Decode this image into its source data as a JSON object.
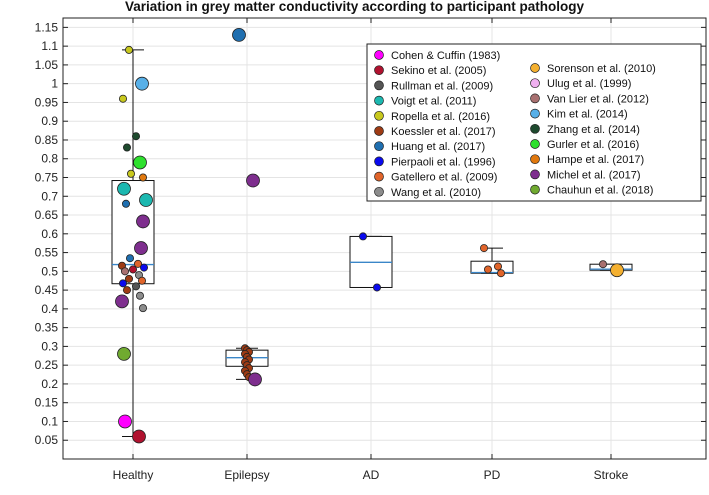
{
  "chart_data": {
    "type": "box+scatter",
    "title": "Variation in grey matter conductivity according to participant pathology",
    "xlabel": "",
    "ylabel": "",
    "ylim": [
      0,
      1.175
    ],
    "yticks": [
      0.05,
      0.1,
      0.15,
      0.2,
      0.25,
      0.3,
      0.35,
      0.4,
      0.45,
      0.5,
      0.55,
      0.6,
      0.65,
      0.7,
      0.75,
      0.8,
      0.85,
      0.9,
      0.95,
      1,
      1.05,
      1.1,
      1.15
    ],
    "ytick_labels": [
      "0.05",
      "0.1",
      "0.15",
      "0.2",
      "0.25",
      "0.3",
      "0.35",
      "0.4",
      "0.45",
      "0.5",
      "0.55",
      "0.6",
      "0.65",
      "0.7",
      "0.75",
      "0.8",
      "0.85",
      "0.9",
      "0.95",
      "1",
      "1.05",
      "1.1",
      "1.15"
    ],
    "grid": true,
    "categories": [
      "Healthy",
      "Epilepsy",
      "AD",
      "PD",
      "Stroke"
    ],
    "boxes": [
      {
        "category": "Healthy",
        "min": 0.06,
        "q1": 0.467,
        "median": 0.518,
        "q3": 0.742,
        "max": 1.09
      },
      {
        "category": "Epilepsy",
        "min": 0.212,
        "q1": 0.247,
        "median": 0.27,
        "q3": 0.29,
        "max": 0.295
      },
      {
        "category": "AD",
        "min": 0.457,
        "q1": 0.457,
        "median": 0.524,
        "q3": 0.593,
        "max": 0.593
      },
      {
        "category": "PD",
        "min": 0.495,
        "q1": 0.495,
        "median": 0.497,
        "q3": 0.527,
        "max": 0.562
      },
      {
        "category": "Stroke",
        "min": 0.503,
        "q1": 0.503,
        "median": 0.506,
        "q3": 0.519,
        "max": 0.519
      }
    ],
    "legend": [
      {
        "name": "Cohen & Cuffin (1983)",
        "color": "#ff00ff"
      },
      {
        "name": "Sekino et al. (2005)",
        "color": "#b0122f"
      },
      {
        "name": "Rullman et al. (2009)",
        "color": "#555555"
      },
      {
        "name": "Voigt et al. (2011)",
        "color": "#1cb8b0"
      },
      {
        "name": "Ropella et al. (2016)",
        "color": "#c8c81e"
      },
      {
        "name": "Koessler et al. (2017)",
        "color": "#9e3b14"
      },
      {
        "name": "Huang et al. (2017)",
        "color": "#1f6fb0"
      },
      {
        "name": "Pierpaoli et al. (1996)",
        "color": "#0a0aee"
      },
      {
        "name": "Gatellero et al. (2009)",
        "color": "#e0642a"
      },
      {
        "name": "Wang et al. (2010)",
        "color": "#8c8c8c"
      },
      {
        "name": "Sorenson et al. (2010)",
        "color": "#f4b030"
      },
      {
        "name": "Ulug et al. (1999)",
        "color": "#f0b0f0"
      },
      {
        "name": "Van Lier et al. (2012)",
        "color": "#a87070"
      },
      {
        "name": "Kim et al. (2014)",
        "color": "#58b0e8"
      },
      {
        "name": "Zhang et al. (2014)",
        "color": "#1e4a2e"
      },
      {
        "name": "Gurler et al. (2016)",
        "color": "#2ee02e"
      },
      {
        "name": "Hampe et al. (2017)",
        "color": "#e0780e"
      },
      {
        "name": "Michel et al. (2017)",
        "color": "#7e2e8e"
      },
      {
        "name": "Chauhun et al. (2018)",
        "color": "#70aa30"
      }
    ],
    "points": [
      {
        "category": "Healthy",
        "value": 0.1,
        "study": "Cohen & Cuffin (1983)",
        "size": "large"
      },
      {
        "category": "Healthy",
        "value": 0.06,
        "study": "Sekino et al. (2005)",
        "size": "large"
      },
      {
        "category": "Healthy",
        "value": 1.09,
        "study": "Ropella et al. (2016)",
        "size": "small"
      },
      {
        "category": "Healthy",
        "value": 1.0,
        "study": "Kim et al. (2014)",
        "size": "large"
      },
      {
        "category": "Healthy",
        "value": 0.96,
        "study": "Ropella et al. (2016)",
        "size": "small"
      },
      {
        "category": "Healthy",
        "value": 0.86,
        "study": "Zhang et al. (2014)",
        "size": "small"
      },
      {
        "category": "Healthy",
        "value": 0.83,
        "study": "Zhang et al. (2014)",
        "size": "small"
      },
      {
        "category": "Healthy",
        "value": 0.79,
        "study": "Gurler et al. (2016)",
        "size": "large"
      },
      {
        "category": "Healthy",
        "value": 0.76,
        "study": "Ropella et al. (2016)",
        "size": "small"
      },
      {
        "category": "Healthy",
        "value": 0.75,
        "study": "Hampe et al. (2017)",
        "size": "small"
      },
      {
        "category": "Healthy",
        "value": 0.72,
        "study": "Voigt et al. (2011)",
        "size": "large"
      },
      {
        "category": "Healthy",
        "value": 0.69,
        "study": "Voigt et al. (2011)",
        "size": "large"
      },
      {
        "category": "Healthy",
        "value": 0.68,
        "study": "Huang et al. (2017)",
        "size": "small"
      },
      {
        "category": "Healthy",
        "value": 0.633,
        "study": "Michel et al. (2017)",
        "size": "large"
      },
      {
        "category": "Healthy",
        "value": 0.562,
        "study": "Michel et al. (2017)",
        "size": "large"
      },
      {
        "category": "Healthy",
        "value": 0.535,
        "study": "Huang et al. (2017)",
        "size": "small"
      },
      {
        "category": "Healthy",
        "value": 0.52,
        "study": "Gatellero et al. (2009)",
        "size": "small"
      },
      {
        "category": "Healthy",
        "value": 0.515,
        "study": "Koessler et al. (2017)",
        "size": "small"
      },
      {
        "category": "Healthy",
        "value": 0.51,
        "study": "Pierpaoli et al. (1996)",
        "size": "small"
      },
      {
        "category": "Healthy",
        "value": 0.505,
        "study": "Sekino et al. (2005)",
        "size": "small"
      },
      {
        "category": "Healthy",
        "value": 0.5,
        "study": "Van Lier et al. (2012)",
        "size": "small"
      },
      {
        "category": "Healthy",
        "value": 0.49,
        "study": "Wang et al. (2010)",
        "size": "small"
      },
      {
        "category": "Healthy",
        "value": 0.48,
        "study": "Koessler et al. (2017)",
        "size": "small"
      },
      {
        "category": "Healthy",
        "value": 0.475,
        "study": "Gatellero et al. (2009)",
        "size": "small"
      },
      {
        "category": "Healthy",
        "value": 0.468,
        "study": "Pierpaoli et al. (1996)",
        "size": "small"
      },
      {
        "category": "Healthy",
        "value": 0.46,
        "study": "Rullman et al. (2009)",
        "size": "small"
      },
      {
        "category": "Healthy",
        "value": 0.45,
        "study": "Koessler et al. (2017)",
        "size": "small"
      },
      {
        "category": "Healthy",
        "value": 0.435,
        "study": "Wang et al. (2010)",
        "size": "small"
      },
      {
        "category": "Healthy",
        "value": 0.42,
        "study": "Michel et al. (2017)",
        "size": "large"
      },
      {
        "category": "Healthy",
        "value": 0.402,
        "study": "Wang et al. (2010)",
        "size": "small"
      },
      {
        "category": "Healthy",
        "value": 0.28,
        "study": "Chauhun et al. (2018)",
        "size": "large"
      },
      {
        "category": "Epilepsy",
        "value": 1.13,
        "study": "Huang et al. (2017)",
        "size": "large"
      },
      {
        "category": "Epilepsy",
        "value": 0.742,
        "study": "Michel et al. (2017)",
        "size": "large"
      },
      {
        "category": "Epilepsy",
        "value": 0.295,
        "study": "Koessler et al. (2017)",
        "size": "small"
      },
      {
        "category": "Epilepsy",
        "value": 0.29,
        "study": "Koessler et al. (2017)",
        "size": "small"
      },
      {
        "category": "Epilepsy",
        "value": 0.285,
        "study": "Koessler et al. (2017)",
        "size": "small"
      },
      {
        "category": "Epilepsy",
        "value": 0.28,
        "study": "Koessler et al. (2017)",
        "size": "small"
      },
      {
        "category": "Epilepsy",
        "value": 0.272,
        "study": "Koessler et al. (2017)",
        "size": "small"
      },
      {
        "category": "Epilepsy",
        "value": 0.265,
        "study": "Koessler et al. (2017)",
        "size": "small"
      },
      {
        "category": "Epilepsy",
        "value": 0.258,
        "study": "Koessler et al. (2017)",
        "size": "small"
      },
      {
        "category": "Epilepsy",
        "value": 0.25,
        "study": "Koessler et al. (2017)",
        "size": "small"
      },
      {
        "category": "Epilepsy",
        "value": 0.242,
        "study": "Koessler et al. (2017)",
        "size": "small"
      },
      {
        "category": "Epilepsy",
        "value": 0.235,
        "study": "Koessler et al. (2017)",
        "size": "small"
      },
      {
        "category": "Epilepsy",
        "value": 0.226,
        "study": "Koessler et al. (2017)",
        "size": "small"
      },
      {
        "category": "Epilepsy",
        "value": 0.218,
        "study": "Koessler et al. (2017)",
        "size": "small"
      },
      {
        "category": "Epilepsy",
        "value": 0.212,
        "study": "Michel et al. (2017)",
        "size": "large"
      },
      {
        "category": "AD",
        "value": 0.593,
        "study": "Pierpaoli et al. (1996)",
        "size": "small"
      },
      {
        "category": "AD",
        "value": 0.457,
        "study": "Pierpaoli et al. (1996)",
        "size": "small"
      },
      {
        "category": "PD",
        "value": 0.562,
        "study": "Gatellero et al. (2009)",
        "size": "small"
      },
      {
        "category": "PD",
        "value": 0.513,
        "study": "Gatellero et al. (2009)",
        "size": "small"
      },
      {
        "category": "PD",
        "value": 0.505,
        "study": "Gatellero et al. (2009)",
        "size": "small"
      },
      {
        "category": "PD",
        "value": 0.495,
        "study": "Gatellero et al. (2009)",
        "size": "small"
      },
      {
        "category": "Stroke",
        "value": 0.519,
        "study": "Van Lier et al. (2012)",
        "size": "small"
      },
      {
        "category": "Stroke",
        "value": 0.503,
        "study": "Sorenson et al. (2010)",
        "size": "large"
      }
    ]
  }
}
